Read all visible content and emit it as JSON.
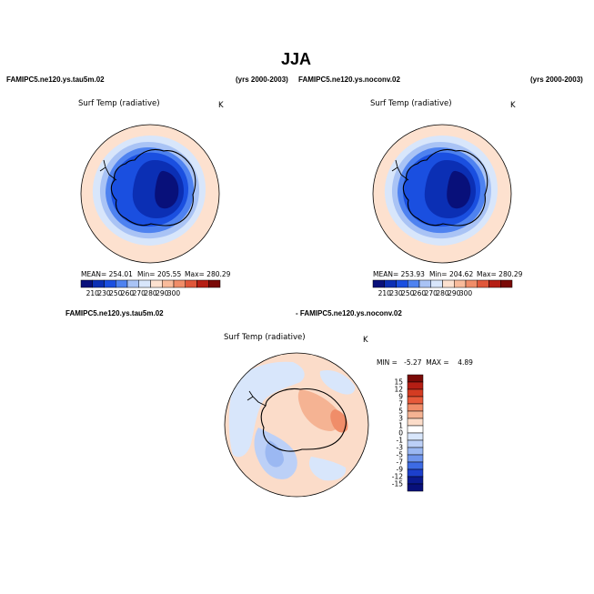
{
  "page": {
    "title": "JJA",
    "left_case": "FAMIPC5.ne120.ys.tau5m.02",
    "left_years": "(yrs 2000-2003)",
    "right_case": "FAMIPC5.ne120.ys.noconv.02",
    "right_years": "(yrs 2000-2003)",
    "diff_left": "FAMIPC5.ne120.ys.tau5m.02",
    "diff_right": "- FAMIPC5.ne120.ys.noconv.02"
  },
  "chart_data": [
    {
      "type": "heatmap",
      "projection": "polar-stereographic-south",
      "title": "Surf Temp (radiative)",
      "units": "K",
      "mean_text": "MEAN= 254.01",
      "min_text": "Min= 205.55",
      "max_text": "Max= 280.29",
      "stats": {
        "mean": 254.01,
        "min": 205.55,
        "max": 280.29
      },
      "colorbar_levels": [
        210,
        230,
        250,
        260,
        270,
        280,
        290,
        300
      ],
      "colorbar_labels": [
        "210",
        "230",
        "250",
        "260",
        "270",
        "280",
        "290",
        "300"
      ]
    },
    {
      "type": "heatmap",
      "projection": "polar-stereographic-south",
      "title": "Surf Temp (radiative)",
      "units": "K",
      "mean_text": "MEAN= 253.93",
      "min_text": "Min= 204.62",
      "max_text": "Max= 280.29",
      "stats": {
        "mean": 253.93,
        "min": 204.62,
        "max": 280.29
      },
      "colorbar_levels": [
        210,
        230,
        250,
        260,
        270,
        280,
        290,
        300
      ],
      "colorbar_labels": [
        "210",
        "230",
        "250",
        "260",
        "270",
        "280",
        "290",
        "300"
      ]
    },
    {
      "type": "heatmap",
      "projection": "polar-stereographic-south",
      "title": "Surf Temp (radiative)",
      "units": "K",
      "minmax_text": "MIN =   -5.27  MAX =    4.89",
      "stats": {
        "min": -5.27,
        "max": 4.89
      },
      "colorbar_levels": [
        15,
        12,
        9,
        7,
        5,
        3,
        1,
        0,
        -1,
        -3,
        -5,
        -7,
        -9,
        -12,
        -15
      ],
      "colorbar_labels": [
        "15",
        "12",
        "9",
        "7",
        "5",
        "3",
        "1",
        "0",
        "-1",
        "-3",
        "-5",
        "-7",
        "-9",
        "-12",
        "-15"
      ]
    }
  ],
  "colors": {
    "abs_scale": [
      "#08107a",
      "#0b2fb4",
      "#1a4fe0",
      "#4e82f0",
      "#a9c3f5",
      "#d8e6fb",
      "#fde1cf",
      "#f9bb9b",
      "#f08d69",
      "#e0573a",
      "#b51e14",
      "#7a0a07"
    ],
    "diff_scale": [
      "#7a0a07",
      "#b51e14",
      "#d43c22",
      "#e75a3a",
      "#f08d69",
      "#f5b393",
      "#fbdcc9",
      "#ffffff",
      "#d8e6fb",
      "#bcd0f7",
      "#9bb8f2",
      "#6f95ec",
      "#3d6be4",
      "#1c3fcc",
      "#0b1a8f",
      "#08107a"
    ]
  }
}
